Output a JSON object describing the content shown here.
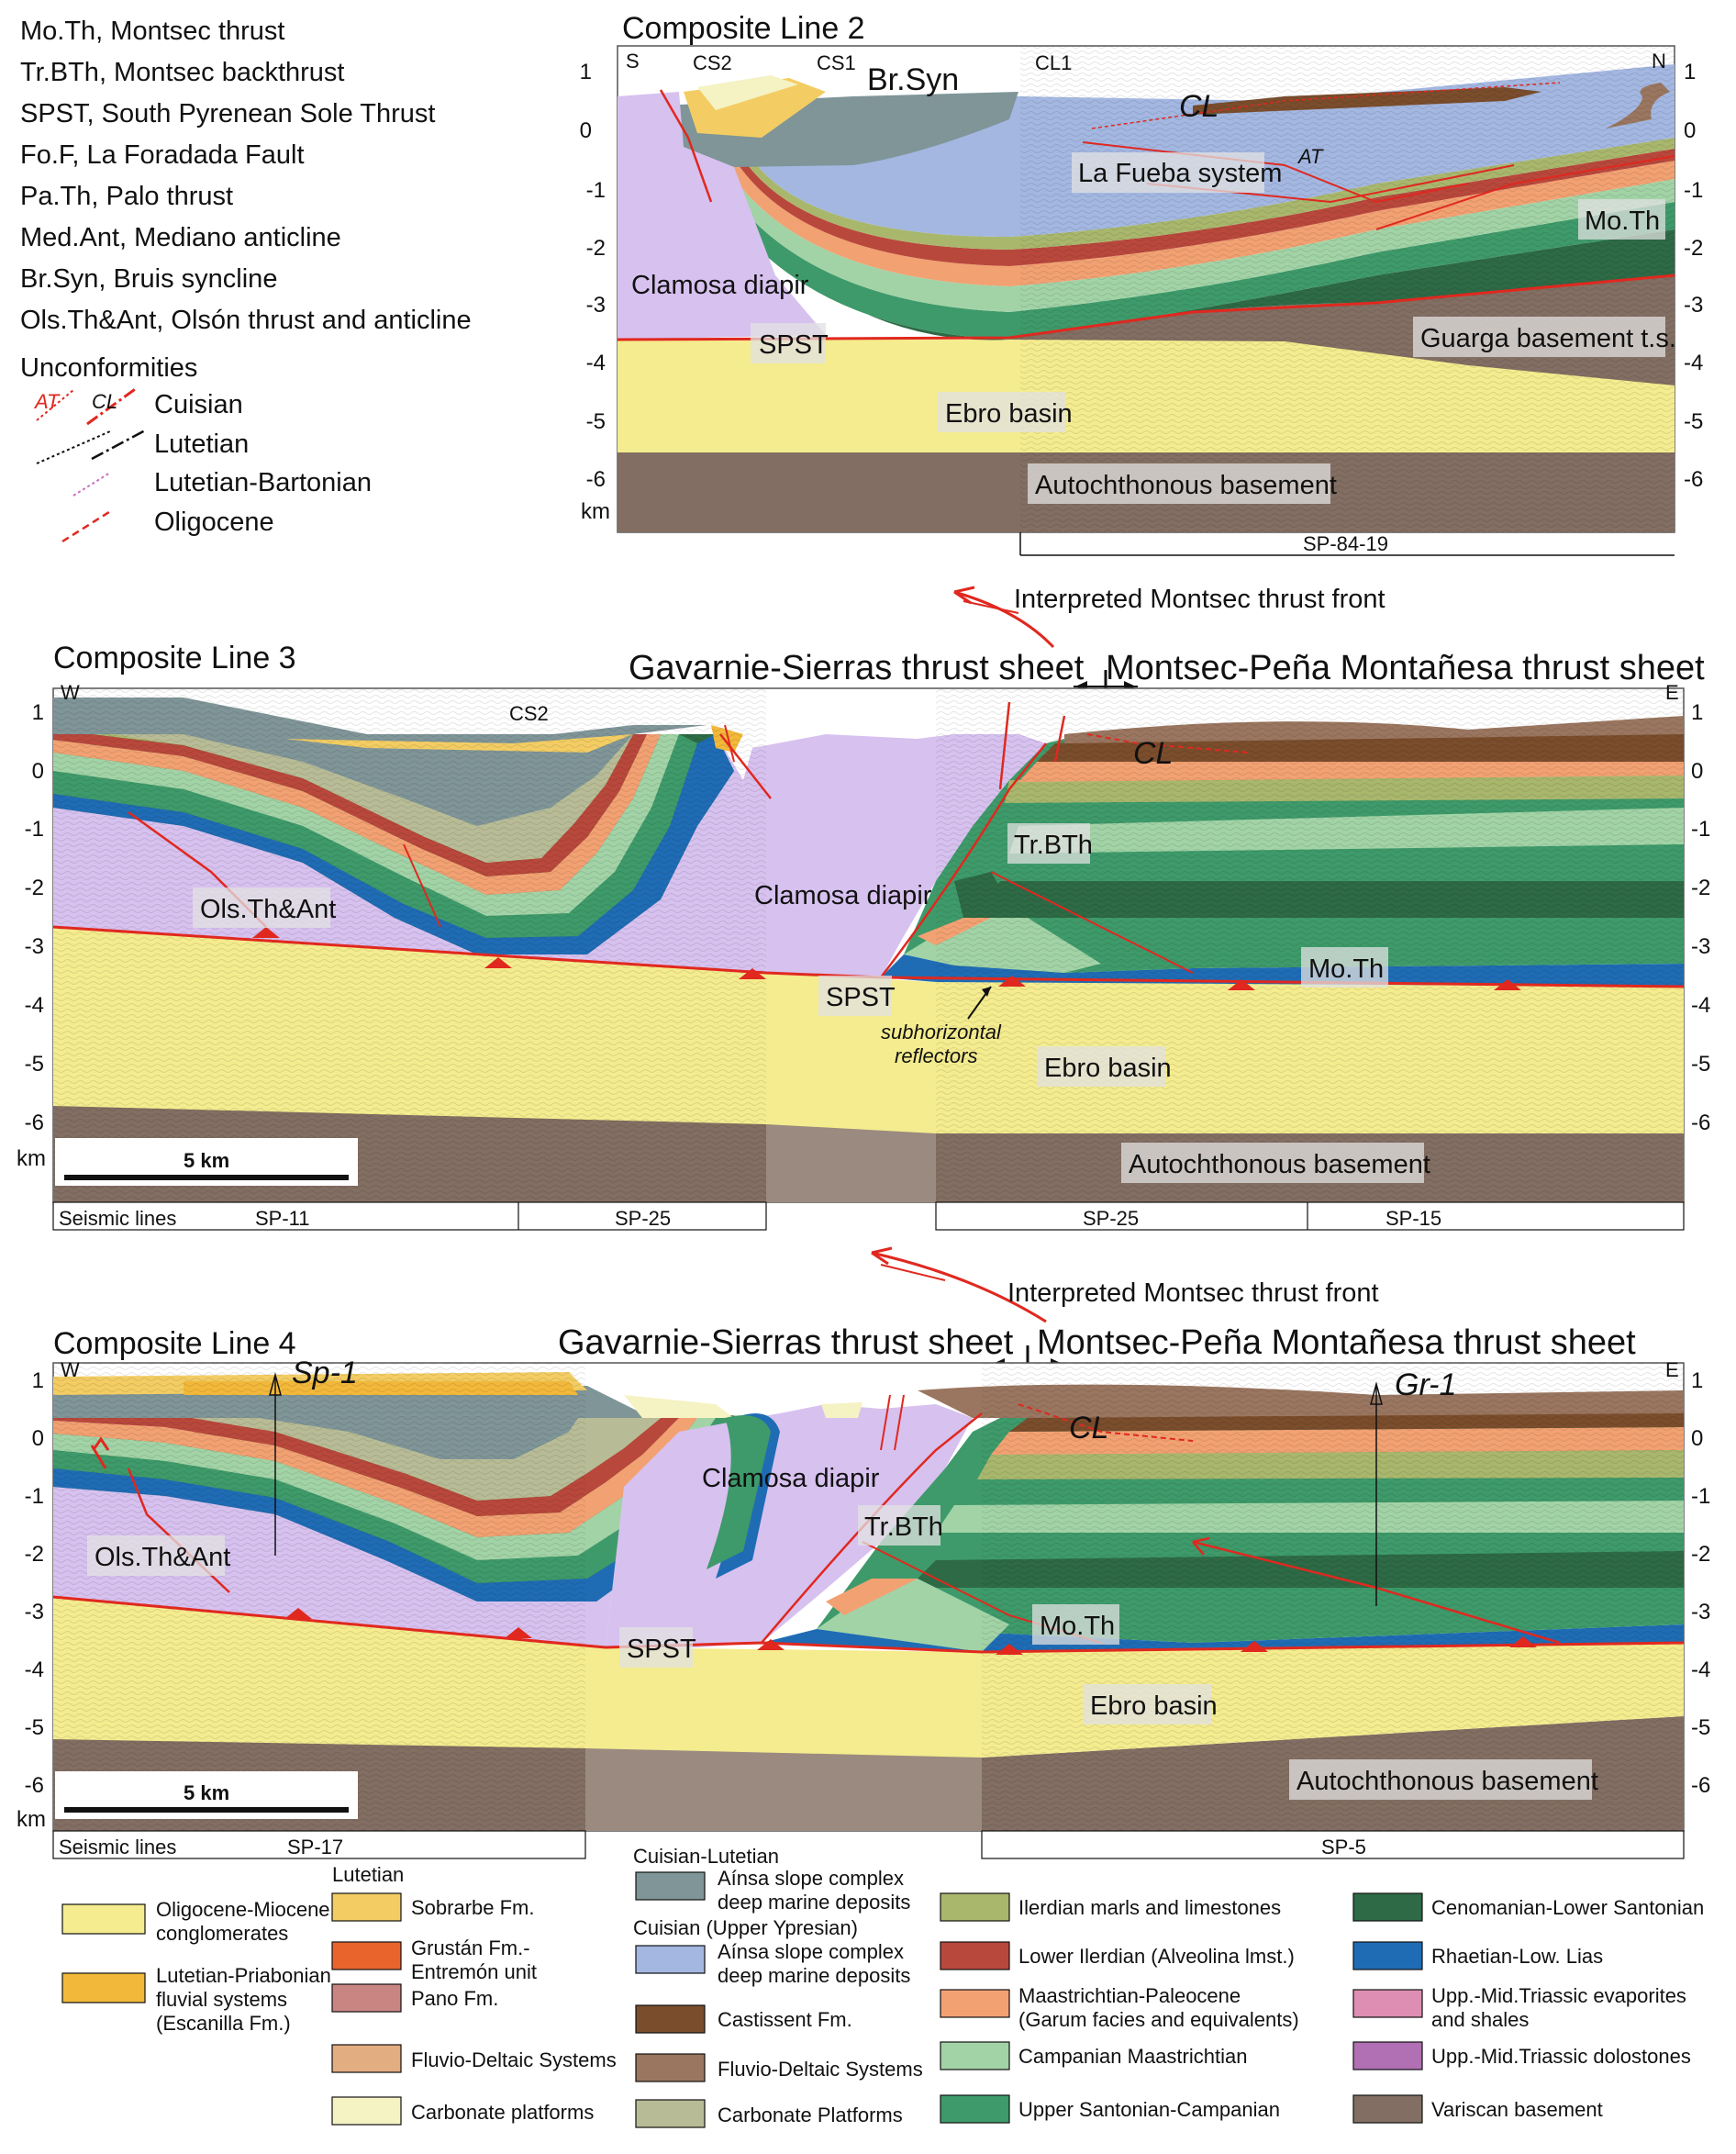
{
  "abbreviations": [
    "Mo.Th, Montsec thrust",
    "Tr.BTh, Montsec backthrust",
    "SPST, South Pyrenean Sole Thrust",
    "Fo.F, La Foradada Fault",
    "Pa.Th, Palo thrust",
    "Med.Ant, Mediano anticline",
    "Br.Syn, Bruis syncline",
    "Ols.Th&Ant, Olsón thrust and anticline"
  ],
  "unconformities": {
    "title": "Unconformities",
    "items": [
      {
        "label": "Cuisian",
        "tags": [
          "AT",
          "CL"
        ],
        "color": "#e0281f"
      },
      {
        "label": "Lutetian",
        "color": "#111111"
      },
      {
        "label": "Lutetian-Bartonian",
        "color": "#c86fc0"
      },
      {
        "label": "Oligocene",
        "color": "#e0281f"
      }
    ]
  },
  "depth_ticks": [
    "1",
    "0",
    "-1",
    "-2",
    "-3",
    "-4",
    "-5",
    "-6"
  ],
  "km_label": "km",
  "line2": {
    "title": "Composite Line 2",
    "ends": {
      "left": "S",
      "right": "N"
    },
    "wells": {
      "cs2": "CS2",
      "cs1": "CS1",
      "brsyn": "Br.Syn",
      "cl1": "CL1"
    },
    "labels": {
      "cl": "CL",
      "at": "AT",
      "fueba": "La Fueba system",
      "moth": "Mo.Th",
      "clamosa": "Clamosa diapir",
      "spst": "SPST",
      "guarga": "Guarga basement t.s.",
      "ebro": "Ebro basin",
      "autoch": "Autochthonous basement"
    },
    "seismic": "SP-84-19"
  },
  "front1": "Interpreted Montsec thrust front",
  "line3": {
    "title": "Composite Line 3",
    "sheet_left": "Gavarnie-Sierras thrust sheet",
    "sheet_right": "Montsec-Peña Montañesa thrust sheet",
    "ends": {
      "left": "W",
      "right": "E"
    },
    "labels": {
      "cs2": "CS2",
      "cl": "CL",
      "trbth": "Tr.BTh",
      "clamosa": "Clamosa diapir",
      "ols": "Ols.Th&Ant",
      "moth": "Mo.Th",
      "spst": "SPST",
      "subh1": "subhorizontal",
      "subh2": "reflectors",
      "ebro": "Ebro basin",
      "autoch": "Autochthonous basement"
    },
    "scale": "5 km",
    "seismic_title": "Seismic lines",
    "seismic": [
      "SP-11",
      "SP-25",
      "SP-25",
      "SP-15"
    ]
  },
  "front2": "Interpreted Montsec thrust front",
  "line4": {
    "title": "Composite Line 4",
    "sheet_left": "Gavarnie-Sierras thrust sheet",
    "sheet_right": "Montsec-Peña Montañesa thrust sheet",
    "ends": {
      "left": "W",
      "right": "E"
    },
    "wells": {
      "sp1": "Sp-1",
      "gr1": "Gr-1"
    },
    "labels": {
      "cl": "CL",
      "clamosa": "Clamosa diapir",
      "trbth": "Tr.BTh",
      "ols": "Ols.Th&Ant",
      "moth": "Mo.Th",
      "spst": "SPST",
      "ebro": "Ebro basin",
      "autoch": "Autochthonous basement"
    },
    "scale": "5 km",
    "seismic_title": "Seismic lines",
    "seismic": [
      "SP-17",
      "SP-5"
    ]
  },
  "legend": {
    "col1": [
      {
        "label": [
          "Oligocene-Miocene",
          "conglomerates"
        ],
        "color": "#f4ec8e"
      },
      {
        "label": [
          "Lutetian-Priabonian",
          "fluvial systems",
          "(Escanilla Fm.)"
        ],
        "color": "#f2b83a"
      }
    ],
    "lutetian_header": "Lutetian",
    "col2": [
      {
        "label": [
          "Sobrarbe Fm."
        ],
        "color": "#f3cd63"
      },
      {
        "label": [
          "Grustán Fm.-",
          "Entremón unit"
        ],
        "color": "#e8642c"
      },
      {
        "label": [
          "Pano Fm."
        ],
        "color": "#c98582"
      },
      {
        "label": [
          "Fluvio-Deltaic Systems"
        ],
        "color": "#e3ad82"
      },
      {
        "label": [
          "Carbonate platforms"
        ],
        "color": "#f5f2c4"
      }
    ],
    "cuisian_lutetian_header": "Cuisian-Lutetian",
    "cuisian_header": "Cuisian (Upper Ypresian)",
    "col3": [
      {
        "label": [
          "Aínsa slope complex",
          "deep marine deposits"
        ],
        "color": "#7f9598"
      },
      {
        "label": [
          "Aínsa slope complex",
          "deep marine deposits"
        ],
        "color": "#a3b7e1"
      },
      {
        "label": [
          "Castissent Fm."
        ],
        "color": "#7a4d2c"
      },
      {
        "label": [
          "Fluvio-Deltaic Systems"
        ],
        "color": "#9a7660"
      },
      {
        "label": [
          "Carbonate Platforms"
        ],
        "color": "#b8bc96"
      }
    ],
    "col4": [
      {
        "label": [
          "Ilerdian marls and limestones"
        ],
        "color": "#a9b76d"
      },
      {
        "label": [
          "Lower Ilerdian (Alveolina lmst.)"
        ],
        "color": "#b9483c"
      },
      {
        "label": [
          "Maastrichtian-Paleocene",
          "(Garum facies and equivalents)"
        ],
        "color": "#f2a172"
      },
      {
        "label": [
          "Campanian Maastrichtian"
        ],
        "color": "#a2d3a6"
      },
      {
        "label": [
          "Upper Santonian-Campanian"
        ],
        "color": "#3e9a6a"
      }
    ],
    "col5": [
      {
        "label": [
          "Cenomanian-Lower Santonian"
        ],
        "color": "#2d6a45"
      },
      {
        "label": [
          "Rhaetian-Low. Lias"
        ],
        "color": "#1f6cb5"
      },
      {
        "label": [
          "Upp.-Mid.Triassic evaporites",
          "and shales"
        ],
        "color": "#de8eb2"
      },
      {
        "label": [
          "Upp.-Mid.Triassic dolostones"
        ],
        "color": "#b170b3"
      },
      {
        "label": [
          "Variscan basement"
        ],
        "color": "#826e62"
      }
    ]
  }
}
